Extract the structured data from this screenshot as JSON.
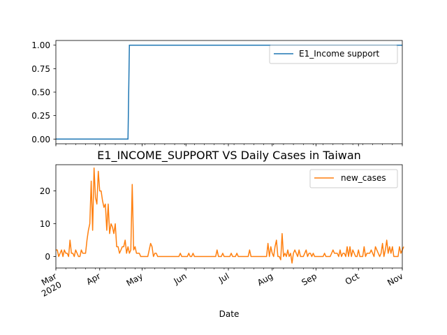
{
  "chart_data": [
    {
      "type": "line",
      "title": "",
      "xlabel": "",
      "ylabel": "",
      "x_range": [
        "2020-03-01",
        "2020-11-01"
      ],
      "ylim": [
        -0.05,
        1.05
      ],
      "yticks": [
        0.0,
        0.25,
        0.5,
        0.75,
        1.0
      ],
      "ytick_labels": [
        "0.00",
        "0.25",
        "0.50",
        "0.75",
        "1.00"
      ],
      "grid": false,
      "legend_position": "top-right",
      "series": [
        {
          "name": "E1_Income support",
          "color": "#1f77b4",
          "step": true,
          "points": [
            [
              "2020-03-01",
              0
            ],
            [
              "2020-04-21",
              0
            ],
            [
              "2020-04-22",
              1
            ],
            [
              "2020-11-01",
              1
            ]
          ]
        }
      ]
    },
    {
      "type": "line",
      "title": "E1_INCOME_SUPPORT VS Daily Cases in Taiwan",
      "xlabel": "Date",
      "ylabel": "",
      "x_range": [
        "2020-03-01",
        "2020-11-01"
      ],
      "ylim": [
        -3.5,
        28
      ],
      "yticks": [
        0,
        10,
        20
      ],
      "ytick_labels": [
        "0",
        "10",
        "20"
      ],
      "xticks": [
        "2020-03-01",
        "2020-04-01",
        "2020-05-01",
        "2020-06-01",
        "2020-07-01",
        "2020-08-01",
        "2020-09-01",
        "2020-10-01",
        "2020-11-01"
      ],
      "xtick_labels": [
        "Mar\n2020",
        "Apr",
        "May",
        "Jun",
        "Jul",
        "Aug",
        "Sep",
        "Oct",
        "Nov"
      ],
      "grid": false,
      "legend_position": "top-right",
      "series": [
        {
          "name": "new_cases",
          "color": "#ff7f0e",
          "start_date": "2020-03-01",
          "values": [
            2,
            2,
            0,
            1,
            2,
            0,
            2,
            1,
            1,
            0,
            5,
            1,
            1,
            0,
            2,
            1,
            0,
            0,
            2,
            1,
            1,
            1,
            5,
            8,
            10,
            23,
            8,
            27,
            18,
            16,
            26,
            20,
            20,
            17,
            15,
            16,
            8,
            16,
            7,
            10,
            9,
            7,
            10,
            3,
            3,
            1,
            2,
            3,
            3,
            5,
            1,
            3,
            1,
            2,
            22,
            2,
            3,
            1,
            1,
            1,
            0,
            0,
            0,
            0,
            0,
            0,
            2,
            4,
            3,
            0,
            1,
            1,
            0,
            0,
            0,
            0,
            0,
            0,
            0,
            0,
            0,
            0,
            0,
            0,
            0,
            0,
            0,
            0,
            1,
            0,
            0,
            0,
            0,
            0,
            1,
            0,
            0,
            1,
            0,
            0,
            0,
            0,
            0,
            0,
            0,
            0,
            0,
            0,
            0,
            0,
            0,
            0,
            0,
            0,
            2,
            0,
            0,
            0,
            1,
            0,
            0,
            0,
            0,
            0,
            1,
            0,
            0,
            0,
            1,
            0,
            0,
            0,
            0,
            0,
            0,
            0,
            0,
            2,
            0,
            0,
            0,
            0,
            0,
            0,
            0,
            0,
            0,
            0,
            0,
            0,
            4,
            0,
            3,
            1,
            0,
            3,
            5,
            0,
            0,
            -1,
            7,
            0,
            1,
            0,
            2,
            0,
            1,
            -2,
            1,
            2,
            1,
            0,
            2,
            0,
            0,
            0,
            1,
            2,
            0,
            1,
            1,
            0,
            1,
            0,
            0,
            0,
            0,
            0,
            0,
            0,
            1,
            0,
            0,
            0,
            0,
            1,
            2,
            1,
            1,
            1,
            0,
            2,
            0,
            1,
            1,
            0,
            3,
            0,
            3,
            0,
            2,
            1,
            0,
            0,
            2,
            0,
            0,
            0,
            3,
            0,
            1,
            1,
            1,
            2,
            1,
            0,
            3,
            2,
            1,
            0,
            1,
            4,
            0,
            2,
            5,
            1,
            3,
            1,
            3,
            0,
            0,
            0,
            0,
            3,
            1,
            2,
            3
          ]
        }
      ]
    }
  ]
}
